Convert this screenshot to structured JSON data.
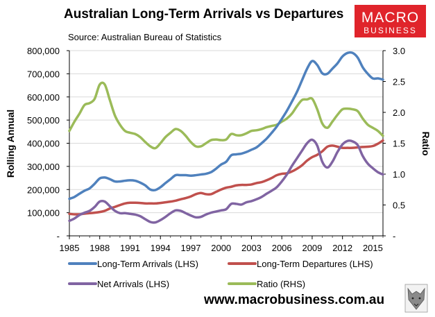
{
  "brand": {
    "logo_line1": "MACRO",
    "logo_line2": "BUSINESS",
    "logo_color": "#e0242b",
    "website": "www.macrobusiness.com.au"
  },
  "chart_data": {
    "type": "line",
    "title": "Australian Long-Term Arrivals vs Departures",
    "subtitle": "Source: Australian Bureau of Statistics",
    "xlabel": "",
    "ylabel": "Rolling Annual",
    "y2label": "Ratio",
    "x_ticks": [
      "1985",
      "1988",
      "1991",
      "1994",
      "1997",
      "2000",
      "2003",
      "2006",
      "2009",
      "2012",
      "2015"
    ],
    "xlim": [
      1985,
      2016
    ],
    "ylim": [
      0,
      800000
    ],
    "y_ticks": [
      {
        "value": 0,
        "label": "-"
      },
      {
        "value": 100000,
        "label": "100,000"
      },
      {
        "value": 200000,
        "label": "200,000"
      },
      {
        "value": 300000,
        "label": "300,000"
      },
      {
        "value": 400000,
        "label": "400,000"
      },
      {
        "value": 500000,
        "label": "500,000"
      },
      {
        "value": 600000,
        "label": "600,000"
      },
      {
        "value": 700000,
        "label": "700,000"
      },
      {
        "value": 800000,
        "label": "800,000"
      }
    ],
    "y2lim": [
      0,
      3.0
    ],
    "y2_ticks": [
      {
        "value": 0,
        "label": "-"
      },
      {
        "value": 0.5,
        "label": "0.5"
      },
      {
        "value": 1.0,
        "label": "1.0"
      },
      {
        "value": 1.5,
        "label": "1.5"
      },
      {
        "value": 2.0,
        "label": "2.0"
      },
      {
        "value": 2.5,
        "label": "2.5"
      },
      {
        "value": 3.0,
        "label": "3.0"
      }
    ],
    "grid": true,
    "legend_position": "bottom",
    "series": [
      {
        "name": "Long-Term Arrivals (LHS)",
        "axis": "left",
        "color": "#4f81bd",
        "x": [
          1985,
          1985.5,
          1986,
          1986.5,
          1987,
          1987.5,
          1988,
          1988.5,
          1989,
          1989.5,
          1990,
          1990.5,
          1991,
          1991.5,
          1992,
          1992.5,
          1993,
          1993.5,
          1994,
          1994.5,
          1995,
          1995.5,
          1996,
          1996.5,
          1997,
          1997.5,
          1998,
          1998.5,
          1999,
          1999.5,
          2000,
          2000.5,
          2001,
          2001.5,
          2002,
          2002.5,
          2003,
          2003.5,
          2004,
          2004.5,
          2005,
          2005.5,
          2006,
          2006.5,
          2007,
          2007.5,
          2008,
          2008.5,
          2009,
          2009.5,
          2010,
          2010.5,
          2011,
          2011.5,
          2012,
          2012.5,
          2013,
          2013.5,
          2014,
          2014.5,
          2015,
          2015.5,
          2016
        ],
        "values": [
          160000,
          168000,
          182000,
          195000,
          205000,
          225000,
          248000,
          252000,
          245000,
          235000,
          235000,
          238000,
          240000,
          238000,
          230000,
          218000,
          200000,
          198000,
          210000,
          228000,
          245000,
          262000,
          262000,
          262000,
          260000,
          262000,
          265000,
          268000,
          275000,
          290000,
          308000,
          320000,
          348000,
          352000,
          355000,
          362000,
          372000,
          382000,
          400000,
          420000,
          445000,
          472000,
          505000,
          540000,
          580000,
          622000,
          672000,
          722000,
          755000,
          738000,
          702000,
          700000,
          722000,
          745000,
          775000,
          790000,
          790000,
          770000,
          728000,
          700000,
          680000,
          680000,
          675000
        ]
      },
      {
        "name": "Long-Term Departures (LHS)",
        "axis": "left",
        "color": "#c0504d",
        "x": [
          1985,
          1985.5,
          1986,
          1986.5,
          1987,
          1987.5,
          1988,
          1988.5,
          1989,
          1989.5,
          1990,
          1990.5,
          1991,
          1991.5,
          1992,
          1992.5,
          1993,
          1993.5,
          1994,
          1994.5,
          1995,
          1995.5,
          1996,
          1996.5,
          1997,
          1997.5,
          1998,
          1998.5,
          1999,
          1999.5,
          2000,
          2000.5,
          2001,
          2001.5,
          2002,
          2002.5,
          2003,
          2003.5,
          2004,
          2004.5,
          2005,
          2005.5,
          2006,
          2006.5,
          2007,
          2007.5,
          2008,
          2008.5,
          2009,
          2009.5,
          2010,
          2010.5,
          2011,
          2011.5,
          2012,
          2012.5,
          2013,
          2013.5,
          2014,
          2014.5,
          2015,
          2015.5,
          2016
        ],
        "values": [
          95000,
          93000,
          93000,
          96000,
          98000,
          100000,
          103000,
          108000,
          118000,
          125000,
          133000,
          140000,
          143000,
          143000,
          142000,
          140000,
          140000,
          140000,
          142000,
          145000,
          148000,
          152000,
          158000,
          163000,
          170000,
          180000,
          185000,
          180000,
          180000,
          190000,
          200000,
          208000,
          212000,
          218000,
          220000,
          220000,
          222000,
          228000,
          232000,
          240000,
          250000,
          262000,
          268000,
          270000,
          278000,
          290000,
          305000,
          325000,
          340000,
          350000,
          365000,
          385000,
          390000,
          385000,
          380000,
          380000,
          380000,
          382000,
          384000,
          385000,
          388000,
          398000,
          412000
        ]
      },
      {
        "name": "Net Arrivals (LHS)",
        "axis": "left",
        "color": "#8064a2",
        "x": [
          1985,
          1985.5,
          1986,
          1986.5,
          1987,
          1987.5,
          1988,
          1988.5,
          1989,
          1989.5,
          1990,
          1990.5,
          1991,
          1991.5,
          1992,
          1992.5,
          1993,
          1993.5,
          1994,
          1994.5,
          1995,
          1995.5,
          1996,
          1996.5,
          1997,
          1997.5,
          1998,
          1998.5,
          1999,
          1999.5,
          2000,
          2000.5,
          2001,
          2001.5,
          2002,
          2002.5,
          2003,
          2003.5,
          2004,
          2004.5,
          2005,
          2005.5,
          2006,
          2006.5,
          2007,
          2007.5,
          2008,
          2008.5,
          2009,
          2009.5,
          2010,
          2010.5,
          2011,
          2011.5,
          2012,
          2012.5,
          2013,
          2013.5,
          2014,
          2014.5,
          2015,
          2015.5,
          2016
        ],
        "values": [
          65000,
          75000,
          90000,
          100000,
          108000,
          125000,
          148000,
          148000,
          128000,
          108000,
          98000,
          98000,
          95000,
          92000,
          85000,
          72000,
          60000,
          58000,
          68000,
          82000,
          98000,
          110000,
          108000,
          98000,
          88000,
          80000,
          82000,
          92000,
          100000,
          105000,
          110000,
          115000,
          138000,
          138000,
          135000,
          145000,
          150000,
          158000,
          168000,
          182000,
          195000,
          210000,
          235000,
          265000,
          302000,
          335000,
          368000,
          400000,
          415000,
          390000,
          320000,
          295000,
          320000,
          362000,
          395000,
          410000,
          408000,
          392000,
          345000,
          312000,
          292000,
          275000,
          265000
        ]
      },
      {
        "name": "Ratio (RHS)",
        "axis": "right",
        "color": "#9bbb59",
        "x": [
          1985,
          1985.5,
          1986,
          1986.5,
          1987,
          1987.5,
          1988,
          1988.5,
          1989,
          1989.5,
          1990,
          1990.5,
          1991,
          1991.5,
          1992,
          1992.5,
          1993,
          1993.5,
          1994,
          1994.5,
          1995,
          1995.5,
          1996,
          1996.5,
          1997,
          1997.5,
          1998,
          1998.5,
          1999,
          1999.5,
          2000,
          2000.5,
          2001,
          2001.5,
          2002,
          2002.5,
          2003,
          2003.5,
          2004,
          2004.5,
          2005,
          2005.5,
          2006,
          2006.5,
          2007,
          2007.5,
          2008,
          2008.5,
          2009,
          2009.5,
          2010,
          2010.5,
          2011,
          2011.5,
          2012,
          2012.5,
          2013,
          2013.5,
          2014,
          2014.5,
          2015,
          2015.5,
          2016
        ],
        "values": [
          1.7,
          1.85,
          1.98,
          2.12,
          2.15,
          2.22,
          2.45,
          2.45,
          2.2,
          1.95,
          1.8,
          1.7,
          1.67,
          1.65,
          1.6,
          1.52,
          1.45,
          1.42,
          1.5,
          1.6,
          1.67,
          1.73,
          1.7,
          1.62,
          1.52,
          1.45,
          1.45,
          1.5,
          1.55,
          1.56,
          1.55,
          1.56,
          1.65,
          1.63,
          1.63,
          1.66,
          1.7,
          1.71,
          1.73,
          1.76,
          1.78,
          1.8,
          1.85,
          1.9,
          1.98,
          2.1,
          2.2,
          2.21,
          2.22,
          2.05,
          1.82,
          1.75,
          1.85,
          1.96,
          2.05,
          2.06,
          2.05,
          2.02,
          1.9,
          1.8,
          1.75,
          1.7,
          1.62
        ]
      }
    ]
  }
}
